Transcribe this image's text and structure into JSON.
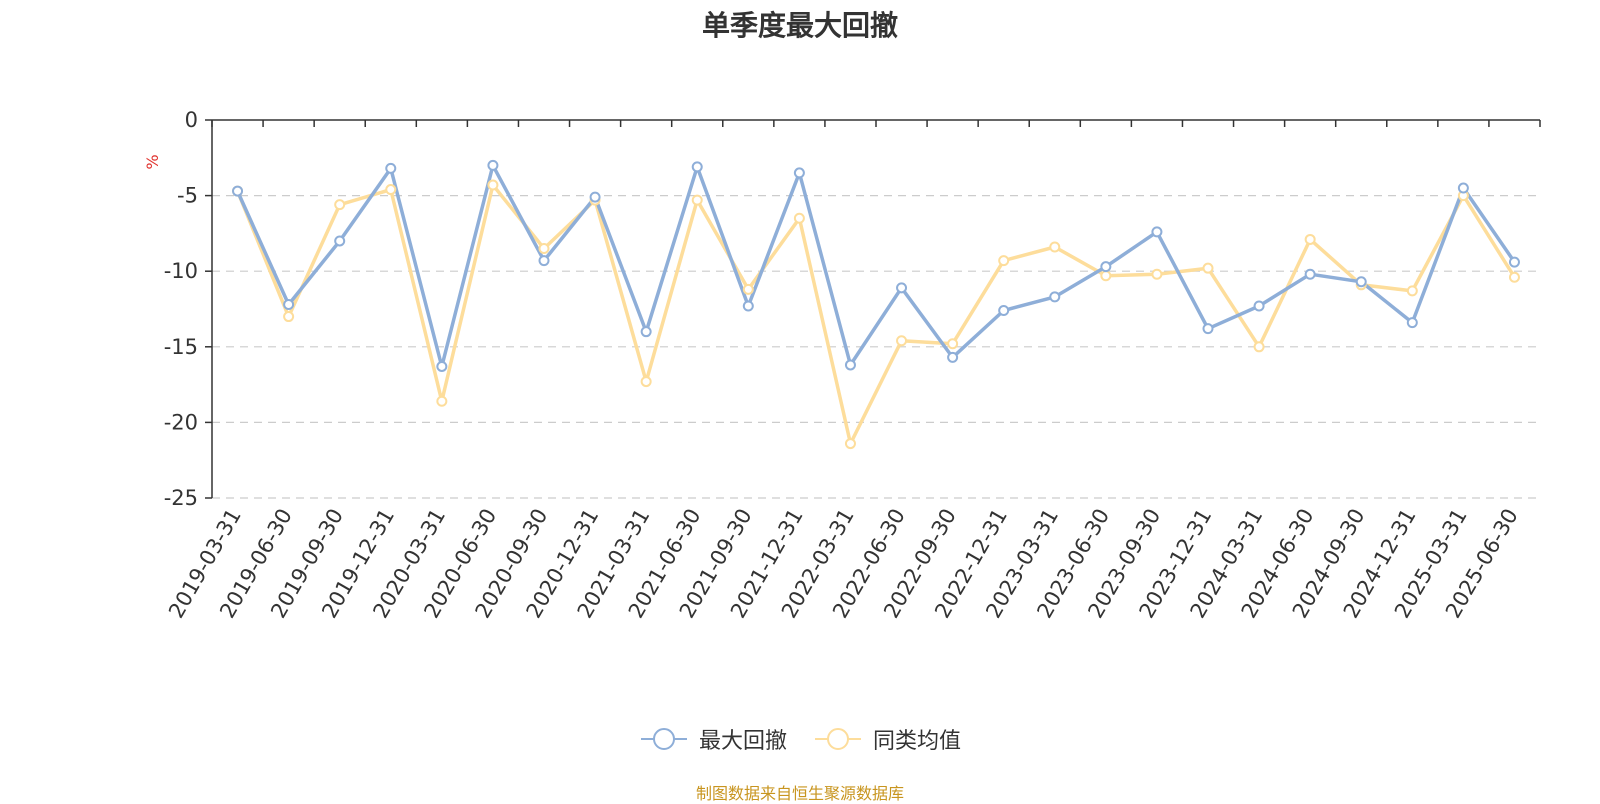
{
  "chart_data": {
    "type": "line",
    "title": "单季度最大回撤",
    "ylabel": "%",
    "ylim": [
      -25,
      0
    ],
    "yticks": [
      0,
      -5,
      -10,
      -15,
      -20,
      -25
    ],
    "grid": true,
    "legend_position": "bottom-center",
    "categories": [
      "2019-03-31",
      "2019-06-30",
      "2019-09-30",
      "2019-12-31",
      "2020-03-31",
      "2020-06-30",
      "2020-09-30",
      "2020-12-31",
      "2021-03-31",
      "2021-06-30",
      "2021-09-30",
      "2021-12-31",
      "2022-03-31",
      "2022-06-30",
      "2022-09-30",
      "2022-12-31",
      "2023-03-31",
      "2023-06-30",
      "2023-09-30",
      "2023-12-31",
      "2024-03-31",
      "2024-06-30",
      "2024-09-30",
      "2024-12-31",
      "2025-03-31",
      "2025-06-30"
    ],
    "series": [
      {
        "name": "最大回撤",
        "color": "#8eaed8",
        "values": [
          -4.7,
          -12.2,
          -8.0,
          -3.2,
          -16.3,
          -3.0,
          -9.3,
          -5.1,
          -14.0,
          -3.1,
          -12.3,
          -3.5,
          -16.2,
          -11.1,
          -15.7,
          -12.6,
          -11.7,
          -9.7,
          -7.4,
          -13.8,
          -12.3,
          -10.2,
          -10.7,
          -13.4,
          -4.5,
          -9.4
        ]
      },
      {
        "name": "同类均值",
        "color": "#fddd9b",
        "values": [
          -4.7,
          -13.0,
          -5.6,
          -4.6,
          -18.6,
          -4.3,
          -8.5,
          -5.3,
          -17.3,
          -5.3,
          -11.2,
          -6.5,
          -21.4,
          -14.6,
          -14.8,
          -9.3,
          -8.4,
          -10.3,
          -10.2,
          -9.8,
          -15.0,
          -7.9,
          -10.9,
          -11.3,
          -5.0,
          -10.4
        ]
      }
    ]
  },
  "source_note": "制图数据来自恒生聚源数据库"
}
